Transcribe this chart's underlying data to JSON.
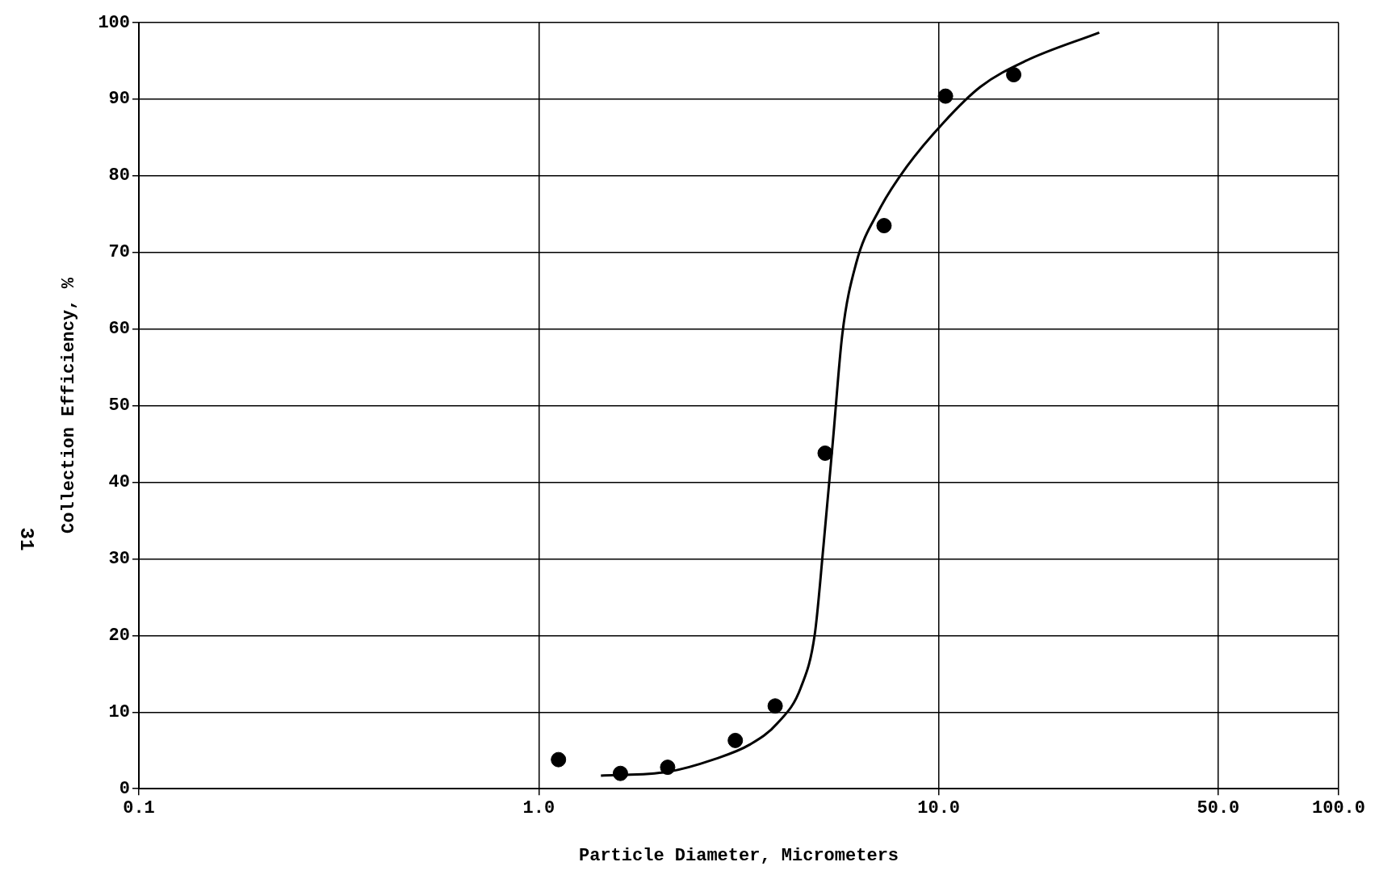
{
  "chart_data": {
    "type": "scatter",
    "xlabel": "Particle Diameter, Micrometers",
    "ylabel": "Collection Efficiency, %",
    "annotations": [
      "31"
    ],
    "log": "x",
    "xlim": [
      0.1,
      100
    ],
    "xticks": [
      {
        "value": 0.1,
        "label": "0.1"
      },
      {
        "value": 1,
        "label": "1.0"
      },
      {
        "value": 10,
        "label": "10.0"
      },
      {
        "value": 50,
        "label": "50.0"
      },
      {
        "value": 100,
        "label": "100.0"
      }
    ],
    "ylim": [
      0,
      100
    ],
    "yticks": [
      0,
      10,
      20,
      30,
      40,
      50,
      60,
      70,
      80,
      90,
      100
    ],
    "grid": true,
    "legend": false,
    "series": [
      {
        "type": "scatter",
        "color": "#000000",
        "marker": "circle",
        "x": [
          1.12,
          1.6,
          2.1,
          3.1,
          3.9,
          5.2,
          7.3,
          10.4,
          15.4
        ],
        "values": [
          3.8,
          2.0,
          2.8,
          6.3,
          10.8,
          43.8,
          73.5,
          90.4,
          93.2
        ]
      },
      {
        "type": "line",
        "color": "#000000",
        "marker": "none",
        "line_style": "solid",
        "x": [
          1.43,
          2.1,
          2.73,
          3.38,
          3.96,
          4.52,
          4.9,
          5.15,
          5.44,
          5.74,
          6.21,
          7.09,
          8.32,
          10.3,
          12.7,
          16.5,
          25.2
        ],
        "values": [
          1.7,
          2.2,
          3.8,
          5.8,
          8.6,
          13.2,
          20.2,
          31.7,
          45.5,
          59.3,
          68.5,
          75.5,
          81.2,
          87.0,
          91.6,
          95.0,
          98.7
        ]
      }
    ]
  }
}
